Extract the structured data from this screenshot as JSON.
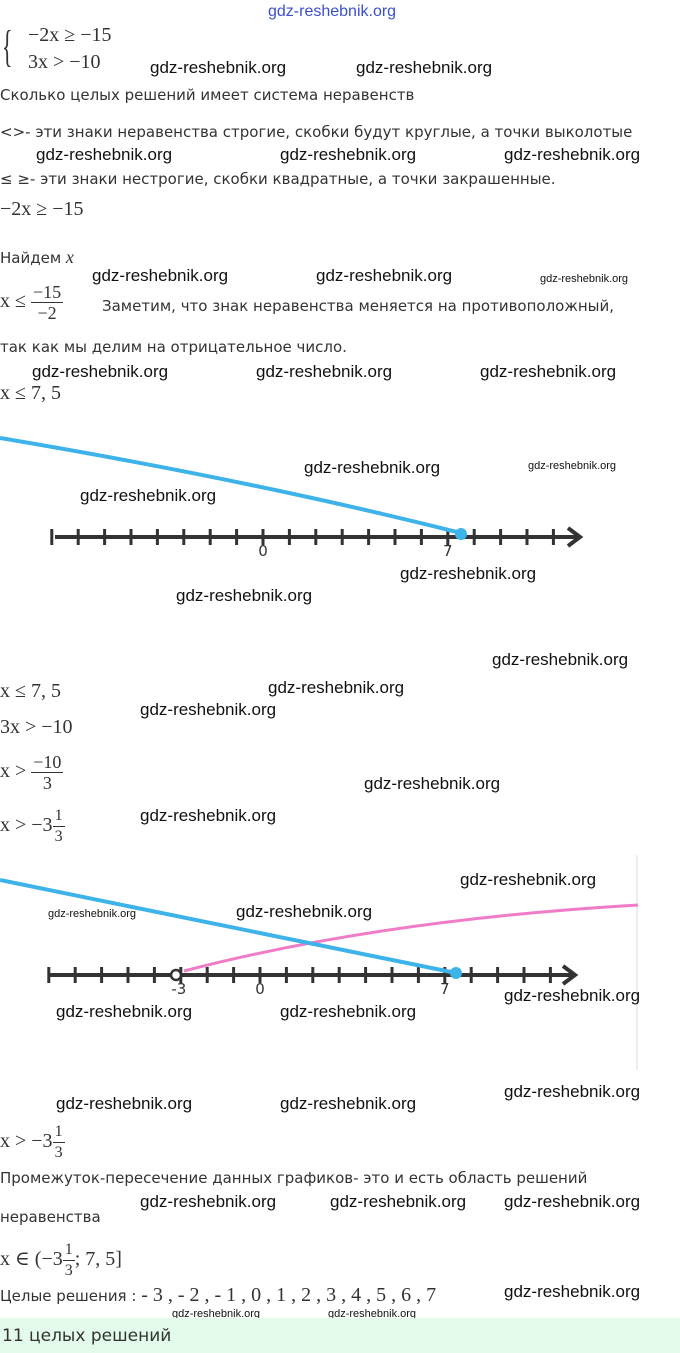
{
  "watermark": "gdz-reshebnik.org",
  "system": {
    "line1": "−2x  ≥  −15",
    "line2": "3x  >  −10"
  },
  "question": "Сколько целых решений имеет система неравенств",
  "strict_note": "<>- эти знаки неравенства строгие, скобки будут круглые, а точки выколотые",
  "nonstrict_note": "≤ ≥- эти знаки нестрогие, скобки квадратные, а точки закрашенные.",
  "step1": "−2x  ≥  −15",
  "find_x": "Найдем",
  "find_x_var": "x",
  "step2_lhs": "x  ≤",
  "step2_num": "−15",
  "step2_den": "−2",
  "step2_note1": "Заметим, что знак неравенства меняется на противоположный,",
  "step2_note2": "так как мы делим на отрицательное число.",
  "step3": "x  ≤  7, 5",
  "numberline1": {
    "labels": [
      "0",
      "7"
    ],
    "point": 7.5,
    "point_type": "closed"
  },
  "step4": "x  ≤  7, 5",
  "step5": "3x  >  −10",
  "step6_lhs": "x  >",
  "step6_num": "−10",
  "step6_den": "3",
  "step7_lhs": "x  >  −3",
  "step7_num": "1",
  "step7_den": "3",
  "numberline2": {
    "labels": [
      "-3",
      "0",
      "7"
    ],
    "open_point": -3.333,
    "closed_point": 7.5
  },
  "step8_lhs": "x  >  −3",
  "step8_num": "1",
  "step8_den": "3",
  "intersection_note1": "Промежуток-пересечение данных графиков- это и есть область решений",
  "intersection_note2": "неравенства",
  "interval_lhs": "x ∈ (−3",
  "interval_num": "1",
  "interval_den": "3",
  "interval_rhs": ";  7, 5]",
  "integer_label": "Целые решения : ",
  "integer_values": "- 3 , - 2 , - 1 , 0 , 1 , 2 , 3 , 4 , 5 , 6 , 7",
  "answer": "11 целых решений",
  "colors": {
    "blue": "#3db3ea",
    "pink": "#f07cc8",
    "answer_bg": "#e2fbea"
  }
}
